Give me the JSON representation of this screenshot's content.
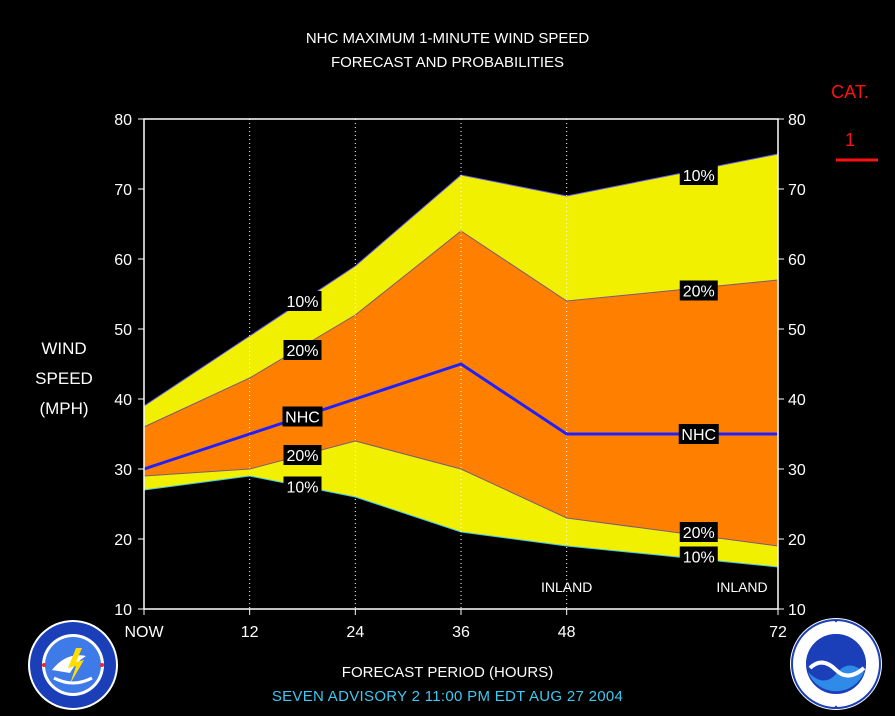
{
  "titles": {
    "line1": "NHC MAXIMUM 1-MINUTE WIND SPEED",
    "line2": "FORECAST AND PROBABILITIES"
  },
  "y_axis_label": [
    "WIND",
    "SPEED",
    "(MPH)"
  ],
  "category": {
    "label": "CAT.",
    "value": "1",
    "color": "#ff1010"
  },
  "x_axis_title": "FORECAST PERIOD (HOURS)",
  "advisory": "SEVEN   ADVISORY  2  11:00  PM  EDT  AUG 27  2004",
  "colors": {
    "band_10": "#f0f000",
    "band_20": "#ff8000",
    "nhc_line": "#2020ff",
    "frame": "#ffffff",
    "background": "#000000",
    "label_box": "#000000",
    "advisory": "#3ec8f0"
  },
  "chart_data": {
    "type": "area",
    "x": [
      0,
      12,
      24,
      36,
      48,
      72
    ],
    "x_tick_labels": [
      "NOW",
      "12",
      "24",
      "36",
      "48",
      "72"
    ],
    "ylim": [
      10,
      80
    ],
    "y_ticks": [
      10,
      20,
      30,
      40,
      50,
      60,
      70,
      80
    ],
    "xlabel": "FORECAST PERIOD (HOURS)",
    "ylabel": "WIND SPEED (MPH)",
    "series": [
      {
        "name": "10%",
        "role": "upper_10",
        "values": [
          39,
          49,
          59,
          72,
          69,
          75
        ]
      },
      {
        "name": "20%",
        "role": "upper_20",
        "values": [
          36,
          43,
          52,
          64,
          54,
          57
        ]
      },
      {
        "name": "NHC",
        "role": "nhc",
        "values": [
          30,
          35,
          40,
          45,
          35,
          35
        ]
      },
      {
        "name": "20%",
        "role": "lower_20",
        "values": [
          29,
          30,
          34,
          30,
          23,
          19
        ]
      },
      {
        "name": "10%",
        "role": "lower_10",
        "values": [
          27,
          29,
          26,
          21,
          19,
          16
        ]
      }
    ],
    "curve_labels": [
      {
        "text": "10%",
        "x": 18,
        "y": 54
      },
      {
        "text": "20%",
        "x": 18,
        "y": 47
      },
      {
        "text": "NHC",
        "x": 18,
        "y": 37.5
      },
      {
        "text": "20%",
        "x": 18,
        "y": 32
      },
      {
        "text": "10%",
        "x": 18,
        "y": 27.5
      },
      {
        "text": "10%",
        "x": 63,
        "y": 72
      },
      {
        "text": "20%",
        "x": 63,
        "y": 55.5
      },
      {
        "text": "NHC",
        "x": 63,
        "y": 35
      },
      {
        "text": "20%",
        "x": 63,
        "y": 21
      },
      {
        "text": "10%",
        "x": 63,
        "y": 17.5
      }
    ],
    "annotations": [
      {
        "text": "INLAND",
        "x": 48
      },
      {
        "text": "INLAND",
        "x": 72
      }
    ],
    "grid": "vertical dotted"
  },
  "logos": {
    "left": "nws-logo",
    "right": "noaa-logo"
  }
}
